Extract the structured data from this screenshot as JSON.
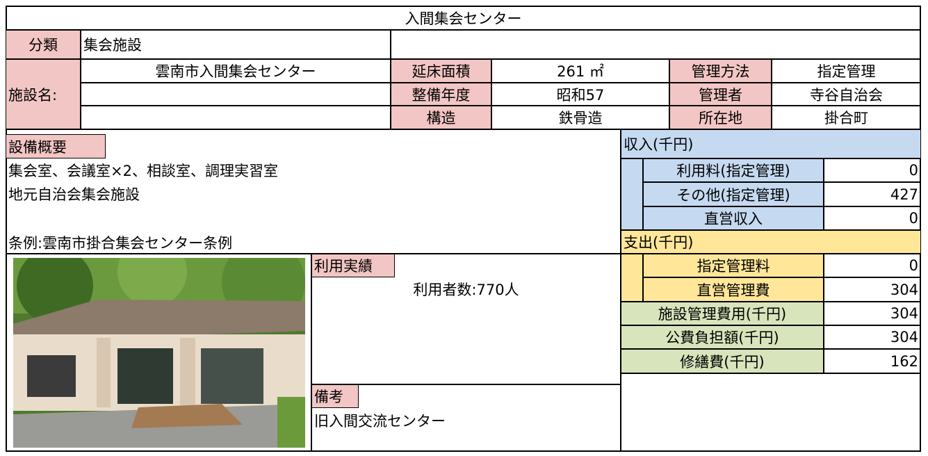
{
  "title": "入間集会センター",
  "classification": {
    "label": "分類",
    "value": "集会施設"
  },
  "facility_name": {
    "label": "施設名:",
    "value": "雲南市入間集会センター"
  },
  "details": [
    {
      "label": "延床面積",
      "value": "261 ㎡"
    },
    {
      "label": "管理方法",
      "value": "指定管理"
    },
    {
      "label": "整備年度",
      "value": "昭和57"
    },
    {
      "label": "管理者",
      "value": "寺谷自治会"
    },
    {
      "label": "構造",
      "value": "鉄骨造"
    },
    {
      "label": "所在地",
      "value": "掛合町"
    }
  ],
  "equipment": {
    "label": "設備概要",
    "lines": [
      "集会室、会議室×2、相談室、調理実習室",
      "地元自治会集会施設"
    ],
    "ordinance": "条例:雲南市掛合集会センター条例"
  },
  "income": {
    "label": "収入(千円)",
    "rows": [
      [
        "利用料(指定管理)",
        0
      ],
      [
        "その他(指定管理)",
        427
      ],
      [
        "直営収入",
        0
      ]
    ]
  },
  "expense": {
    "label": "支出(千円)",
    "rows": [
      [
        "指定管理料",
        0
      ],
      [
        "直営管理費",
        304
      ]
    ]
  },
  "totals": [
    [
      "施設管理費用(千円)",
      304
    ],
    [
      "公費負担額(千円)",
      304
    ],
    [
      "修繕費(千円)",
      162
    ]
  ],
  "usage": {
    "label": "利用実績",
    "text": "利用者数:770人"
  },
  "remarks": {
    "label": "備考",
    "text": "旧入間交流センター"
  }
}
